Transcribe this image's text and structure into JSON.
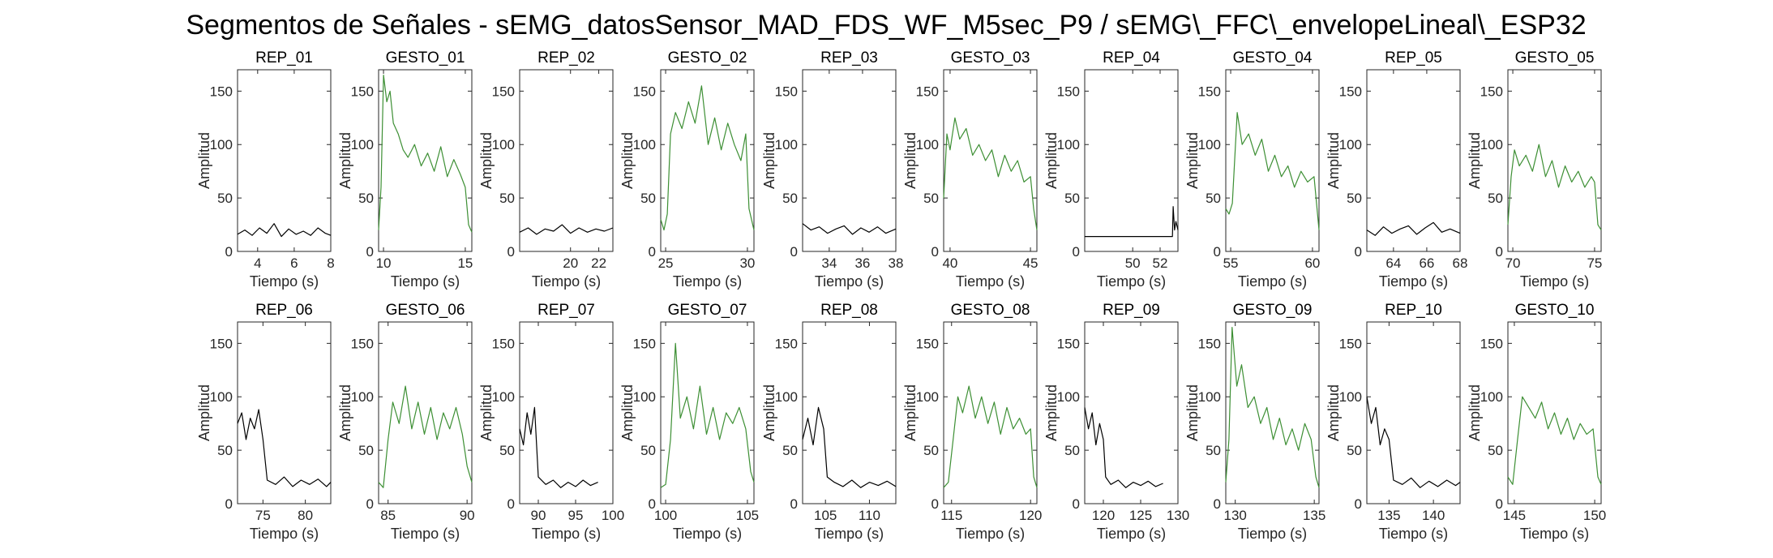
{
  "colors": {
    "rep": "#000000",
    "gesto": "#3d8f34",
    "axes": "#262626"
  },
  "chart_data": {
    "type": "line",
    "title": "Segmentos de Señales - sEMG_datosSensor_MAD_FDS_WF_M5sec_P9 / sEMG\\_FFC\\_envelopeLineal\\_ESP32",
    "grid": false,
    "layout": "2 rows x 10 columns",
    "panels": [
      {
        "title": "REP_01",
        "kind": "rep",
        "xlim": [
          2.9,
          8.0
        ],
        "ylim": [
          0,
          170
        ],
        "xticks": [
          4,
          6,
          8
        ],
        "yticks": [
          0,
          50,
          100,
          150
        ],
        "xlabel": "Tiempo (s)",
        "ylabel": "Amplitud",
        "x": [
          2.9,
          3.3,
          3.7,
          4.1,
          4.5,
          4.9,
          5.3,
          5.7,
          6.1,
          6.5,
          6.9,
          7.3,
          7.7,
          8.0
        ],
        "y": [
          16,
          20,
          15,
          22,
          17,
          26,
          14,
          21,
          16,
          19,
          15,
          22,
          17,
          15
        ]
      },
      {
        "title": "GESTO_01",
        "kind": "gesto",
        "xlim": [
          9.7,
          15.4
        ],
        "ylim": [
          0,
          170
        ],
        "xticks": [
          10,
          15
        ],
        "yticks": [
          0,
          50,
          100,
          150
        ],
        "xlabel": "Tiempo (s)",
        "ylabel": "Amplitud",
        "x": [
          9.7,
          9.85,
          10.0,
          10.2,
          10.4,
          10.6,
          10.9,
          11.2,
          11.5,
          11.9,
          12.3,
          12.7,
          13.1,
          13.5,
          13.9,
          14.3,
          14.7,
          15.0,
          15.2,
          15.4
        ],
        "y": [
          20,
          60,
          165,
          140,
          150,
          120,
          110,
          95,
          88,
          100,
          80,
          92,
          75,
          98,
          70,
          86,
          72,
          60,
          25,
          18
        ]
      },
      {
        "title": "REP_02",
        "kind": "rep",
        "xlim": [
          16.4,
          23.0
        ],
        "ylim": [
          0,
          170
        ],
        "xticks": [
          20,
          22
        ],
        "yticks": [
          0,
          50,
          100,
          150
        ],
        "xlabel": "Tiempo (s)",
        "ylabel": "Amplitud",
        "x": [
          16.4,
          17.0,
          17.6,
          18.2,
          18.8,
          19.4,
          20.0,
          20.6,
          21.2,
          21.8,
          22.4,
          23.0
        ],
        "y": [
          18,
          22,
          16,
          21,
          19,
          25,
          17,
          22,
          18,
          21,
          19,
          22
        ]
      },
      {
        "title": "GESTO_02",
        "kind": "gesto",
        "xlim": [
          24.7,
          30.4
        ],
        "ylim": [
          0,
          170
        ],
        "xticks": [
          25,
          30
        ],
        "yticks": [
          0,
          50,
          100,
          150
        ],
        "xlabel": "Tiempo (s)",
        "ylabel": "Amplitud",
        "x": [
          24.7,
          24.9,
          25.1,
          25.3,
          25.6,
          26.0,
          26.4,
          26.8,
          27.2,
          27.6,
          28.0,
          28.4,
          28.8,
          29.2,
          29.6,
          29.9,
          30.1,
          30.4
        ],
        "y": [
          30,
          20,
          35,
          110,
          130,
          115,
          140,
          120,
          155,
          100,
          125,
          95,
          120,
          100,
          85,
          110,
          40,
          20
        ]
      },
      {
        "title": "REP_03",
        "kind": "rep",
        "xlim": [
          32.4,
          38.0
        ],
        "ylim": [
          0,
          170
        ],
        "xticks": [
          34,
          36,
          38
        ],
        "yticks": [
          0,
          50,
          100,
          150
        ],
        "xlabel": "Tiempo (s)",
        "ylabel": "Amplitud",
        "x": [
          32.4,
          32.9,
          33.4,
          33.9,
          34.4,
          34.9,
          35.4,
          35.9,
          36.4,
          36.9,
          37.4,
          38.0
        ],
        "y": [
          26,
          20,
          23,
          17,
          21,
          24,
          16,
          22,
          18,
          23,
          17,
          21
        ]
      },
      {
        "title": "GESTO_03",
        "kind": "gesto",
        "xlim": [
          39.6,
          45.4
        ],
        "ylim": [
          0,
          170
        ],
        "xticks": [
          40,
          45
        ],
        "yticks": [
          0,
          50,
          100,
          150
        ],
        "xlabel": "Tiempo (s)",
        "ylabel": "Amplitud",
        "x": [
          39.6,
          39.8,
          40.0,
          40.3,
          40.6,
          41.0,
          41.4,
          41.8,
          42.2,
          42.6,
          43.0,
          43.4,
          43.8,
          44.2,
          44.6,
          45.0,
          45.2,
          45.4
        ],
        "y": [
          50,
          110,
          95,
          125,
          105,
          115,
          90,
          100,
          85,
          95,
          70,
          90,
          75,
          85,
          65,
          70,
          40,
          20
        ]
      },
      {
        "title": "REP_04",
        "kind": "rep",
        "xlim": [
          46.5,
          53.3
        ],
        "ylim": [
          0,
          170
        ],
        "xticks": [
          50,
          52
        ],
        "yticks": [
          0,
          50,
          100,
          150
        ],
        "xlabel": "Tiempo (s)",
        "ylabel": "Amplitud",
        "x": [
          46.5,
          49.0,
          52.9,
          52.95,
          53.05,
          53.15,
          53.3
        ],
        "y": [
          14,
          14,
          14,
          42,
          20,
          28,
          20
        ]
      },
      {
        "title": "GESTO_04",
        "kind": "gesto",
        "xlim": [
          54.7,
          60.4
        ],
        "ylim": [
          0,
          170
        ],
        "xticks": [
          55,
          60
        ],
        "yticks": [
          0,
          50,
          100,
          150
        ],
        "xlabel": "Tiempo (s)",
        "ylabel": "Amplitud",
        "x": [
          54.7,
          54.9,
          55.1,
          55.4,
          55.7,
          56.1,
          56.5,
          56.9,
          57.3,
          57.7,
          58.1,
          58.5,
          58.9,
          59.3,
          59.7,
          60.1,
          60.4
        ],
        "y": [
          40,
          35,
          45,
          130,
          100,
          110,
          90,
          105,
          75,
          90,
          70,
          80,
          60,
          75,
          65,
          70,
          20
        ]
      },
      {
        "title": "REP_05",
        "kind": "rep",
        "xlim": [
          62.4,
          68.0
        ],
        "ylim": [
          0,
          170
        ],
        "xticks": [
          64,
          66,
          68
        ],
        "yticks": [
          0,
          50,
          100,
          150
        ],
        "xlabel": "Tiempo (s)",
        "ylabel": "Amplitud",
        "x": [
          62.4,
          62.9,
          63.4,
          63.9,
          64.4,
          64.9,
          65.4,
          65.9,
          66.4,
          66.9,
          67.4,
          68.0
        ],
        "y": [
          20,
          15,
          23,
          17,
          21,
          24,
          16,
          22,
          27,
          18,
          21,
          17
        ]
      },
      {
        "title": "GESTO_05",
        "kind": "gesto",
        "xlim": [
          69.7,
          75.4
        ],
        "ylim": [
          0,
          170
        ],
        "xticks": [
          70,
          75
        ],
        "yticks": [
          0,
          50,
          100,
          150
        ],
        "xlabel": "Tiempo (s)",
        "ylabel": "Amplitud",
        "x": [
          69.7,
          69.9,
          70.1,
          70.4,
          70.8,
          71.2,
          71.6,
          72.0,
          72.4,
          72.8,
          73.2,
          73.6,
          74.0,
          74.4,
          74.8,
          75.0,
          75.2,
          75.4
        ],
        "y": [
          25,
          70,
          95,
          80,
          90,
          75,
          100,
          70,
          85,
          60,
          80,
          65,
          75,
          60,
          70,
          65,
          25,
          20
        ]
      },
      {
        "title": "REP_06",
        "kind": "rep",
        "xlim": [
          72.0,
          83.0
        ],
        "ylim": [
          0,
          170
        ],
        "xticks": [
          75,
          80
        ],
        "yticks": [
          0,
          50,
          100,
          150
        ],
        "xlabel": "Tiempo (s)",
        "ylabel": "Amplitud",
        "x": [
          72.0,
          72.5,
          73.0,
          73.5,
          74.0,
          74.5,
          75.0,
          75.5,
          76.5,
          77.5,
          78.5,
          79.5,
          80.5,
          81.5,
          82.5,
          83.0
        ],
        "y": [
          75,
          85,
          60,
          80,
          70,
          88,
          60,
          22,
          18,
          25,
          16,
          22,
          18,
          23,
          16,
          20
        ]
      },
      {
        "title": "GESTO_06",
        "kind": "gesto",
        "xlim": [
          84.4,
          90.3
        ],
        "ylim": [
          0,
          170
        ],
        "xticks": [
          85,
          90
        ],
        "yticks": [
          0,
          50,
          100,
          150
        ],
        "xlabel": "Tiempo (s)",
        "ylabel": "Amplitud",
        "x": [
          84.4,
          84.7,
          85.0,
          85.3,
          85.7,
          86.1,
          86.5,
          86.9,
          87.3,
          87.7,
          88.1,
          88.5,
          88.9,
          89.3,
          89.7,
          90.0,
          90.3
        ],
        "y": [
          20,
          15,
          60,
          95,
          75,
          110,
          70,
          95,
          65,
          90,
          60,
          85,
          70,
          90,
          65,
          35,
          20
        ]
      },
      {
        "title": "REP_07",
        "kind": "rep",
        "xlim": [
          87.5,
          100.0
        ],
        "ylim": [
          0,
          170
        ],
        "xticks": [
          90,
          95,
          100
        ],
        "yticks": [
          0,
          50,
          100,
          150
        ],
        "xlabel": "Tiempo (s)",
        "ylabel": "Amplitud",
        "x": [
          87.5,
          88.0,
          88.5,
          89.0,
          89.5,
          90.0,
          91.0,
          92.0,
          93.0,
          94.0,
          95.0,
          96.0,
          97.0,
          98.0
        ],
        "y": [
          70,
          55,
          85,
          65,
          90,
          25,
          18,
          22,
          15,
          20,
          16,
          22,
          17,
          20
        ]
      },
      {
        "title": "GESTO_07",
        "kind": "gesto",
        "xlim": [
          99.7,
          105.4
        ],
        "ylim": [
          0,
          170
        ],
        "xticks": [
          100,
          105
        ],
        "yticks": [
          0,
          50,
          100,
          150
        ],
        "xlabel": "Tiempo (s)",
        "ylabel": "Amplitud",
        "x": [
          99.7,
          100.0,
          100.3,
          100.6,
          100.9,
          101.3,
          101.7,
          102.1,
          102.5,
          102.9,
          103.3,
          103.7,
          104.1,
          104.5,
          104.9,
          105.2,
          105.4
        ],
        "y": [
          15,
          18,
          60,
          150,
          80,
          100,
          70,
          110,
          65,
          90,
          60,
          85,
          75,
          90,
          70,
          30,
          20
        ]
      },
      {
        "title": "REP_08",
        "kind": "rep",
        "xlim": [
          102.4,
          113.0
        ],
        "ylim": [
          0,
          170
        ],
        "xticks": [
          105,
          110
        ],
        "yticks": [
          0,
          50,
          100,
          150
        ],
        "xlabel": "Tiempo (s)",
        "ylabel": "Amplitud",
        "x": [
          102.4,
          103.0,
          103.6,
          104.2,
          104.8,
          105.2,
          106.0,
          107.0,
          108.0,
          109.0,
          110.0,
          111.0,
          112.0,
          113.0
        ],
        "y": [
          60,
          80,
          55,
          90,
          70,
          25,
          20,
          16,
          22,
          15,
          20,
          17,
          21,
          16
        ]
      },
      {
        "title": "GESTO_08",
        "kind": "gesto",
        "xlim": [
          114.5,
          120.4
        ],
        "ylim": [
          0,
          170
        ],
        "xticks": [
          115,
          120
        ],
        "yticks": [
          0,
          50,
          100,
          150
        ],
        "xlabel": "Tiempo (s)",
        "ylabel": "Amplitud",
        "x": [
          114.5,
          114.8,
          115.1,
          115.4,
          115.7,
          116.1,
          116.5,
          116.9,
          117.3,
          117.7,
          118.1,
          118.5,
          118.9,
          119.3,
          119.7,
          120.0,
          120.2,
          120.4
        ],
        "y": [
          15,
          20,
          60,
          100,
          85,
          110,
          80,
          100,
          75,
          95,
          65,
          90,
          70,
          80,
          65,
          70,
          25,
          15
        ]
      },
      {
        "title": "REP_09",
        "kind": "rep",
        "xlim": [
          117.5,
          130.0
        ],
        "ylim": [
          0,
          170
        ],
        "xticks": [
          120,
          125,
          130
        ],
        "yticks": [
          0,
          50,
          100,
          150
        ],
        "xlabel": "Tiempo (s)",
        "ylabel": "Amplitud",
        "x": [
          117.5,
          118.0,
          118.5,
          119.0,
          119.5,
          120.0,
          120.3,
          121.0,
          122.0,
          123.0,
          124.0,
          125.0,
          126.0,
          127.0,
          128.0
        ],
        "y": [
          90,
          70,
          85,
          55,
          75,
          60,
          25,
          18,
          22,
          15,
          20,
          17,
          21,
          16,
          19
        ]
      },
      {
        "title": "GESTO_09",
        "kind": "gesto",
        "xlim": [
          129.4,
          135.3
        ],
        "ylim": [
          0,
          170
        ],
        "xticks": [
          130,
          135
        ],
        "yticks": [
          0,
          50,
          100,
          150
        ],
        "xlabel": "Tiempo (s)",
        "ylabel": "Amplitud",
        "x": [
          129.4,
          129.6,
          129.8,
          130.1,
          130.4,
          130.8,
          131.2,
          131.6,
          132.0,
          132.4,
          132.8,
          133.2,
          133.6,
          134.0,
          134.4,
          134.8,
          135.1,
          135.3
        ],
        "y": [
          20,
          60,
          165,
          110,
          130,
          90,
          100,
          75,
          90,
          60,
          80,
          55,
          70,
          50,
          75,
          60,
          25,
          15
        ]
      },
      {
        "title": "REP_10",
        "kind": "rep",
        "xlim": [
          132.5,
          143.0
        ],
        "ylim": [
          0,
          170
        ],
        "xticks": [
          135,
          140
        ],
        "yticks": [
          0,
          50,
          100,
          150
        ],
        "xlabel": "Tiempo (s)",
        "ylabel": "Amplitud",
        "x": [
          132.5,
          133.0,
          133.5,
          134.0,
          134.5,
          135.0,
          135.5,
          136.5,
          137.5,
          138.5,
          139.5,
          140.5,
          141.5,
          142.5,
          143.0
        ],
        "y": [
          100,
          75,
          90,
          55,
          70,
          60,
          22,
          18,
          24,
          15,
          21,
          16,
          22,
          17,
          20
        ]
      },
      {
        "title": "GESTO_10",
        "kind": "gesto",
        "xlim": [
          144.6,
          150.4
        ],
        "ylim": [
          0,
          170
        ],
        "xticks": [
          145,
          150
        ],
        "yticks": [
          0,
          50,
          100,
          150
        ],
        "xlabel": "Tiempo (s)",
        "ylabel": "Amplitud",
        "x": [
          144.6,
          144.9,
          145.2,
          145.5,
          145.9,
          146.3,
          146.7,
          147.1,
          147.5,
          147.9,
          148.3,
          148.7,
          149.1,
          149.5,
          149.9,
          150.2,
          150.4
        ],
        "y": [
          25,
          18,
          60,
          100,
          90,
          80,
          95,
          70,
          85,
          65,
          80,
          60,
          75,
          65,
          70,
          25,
          18
        ]
      }
    ]
  }
}
